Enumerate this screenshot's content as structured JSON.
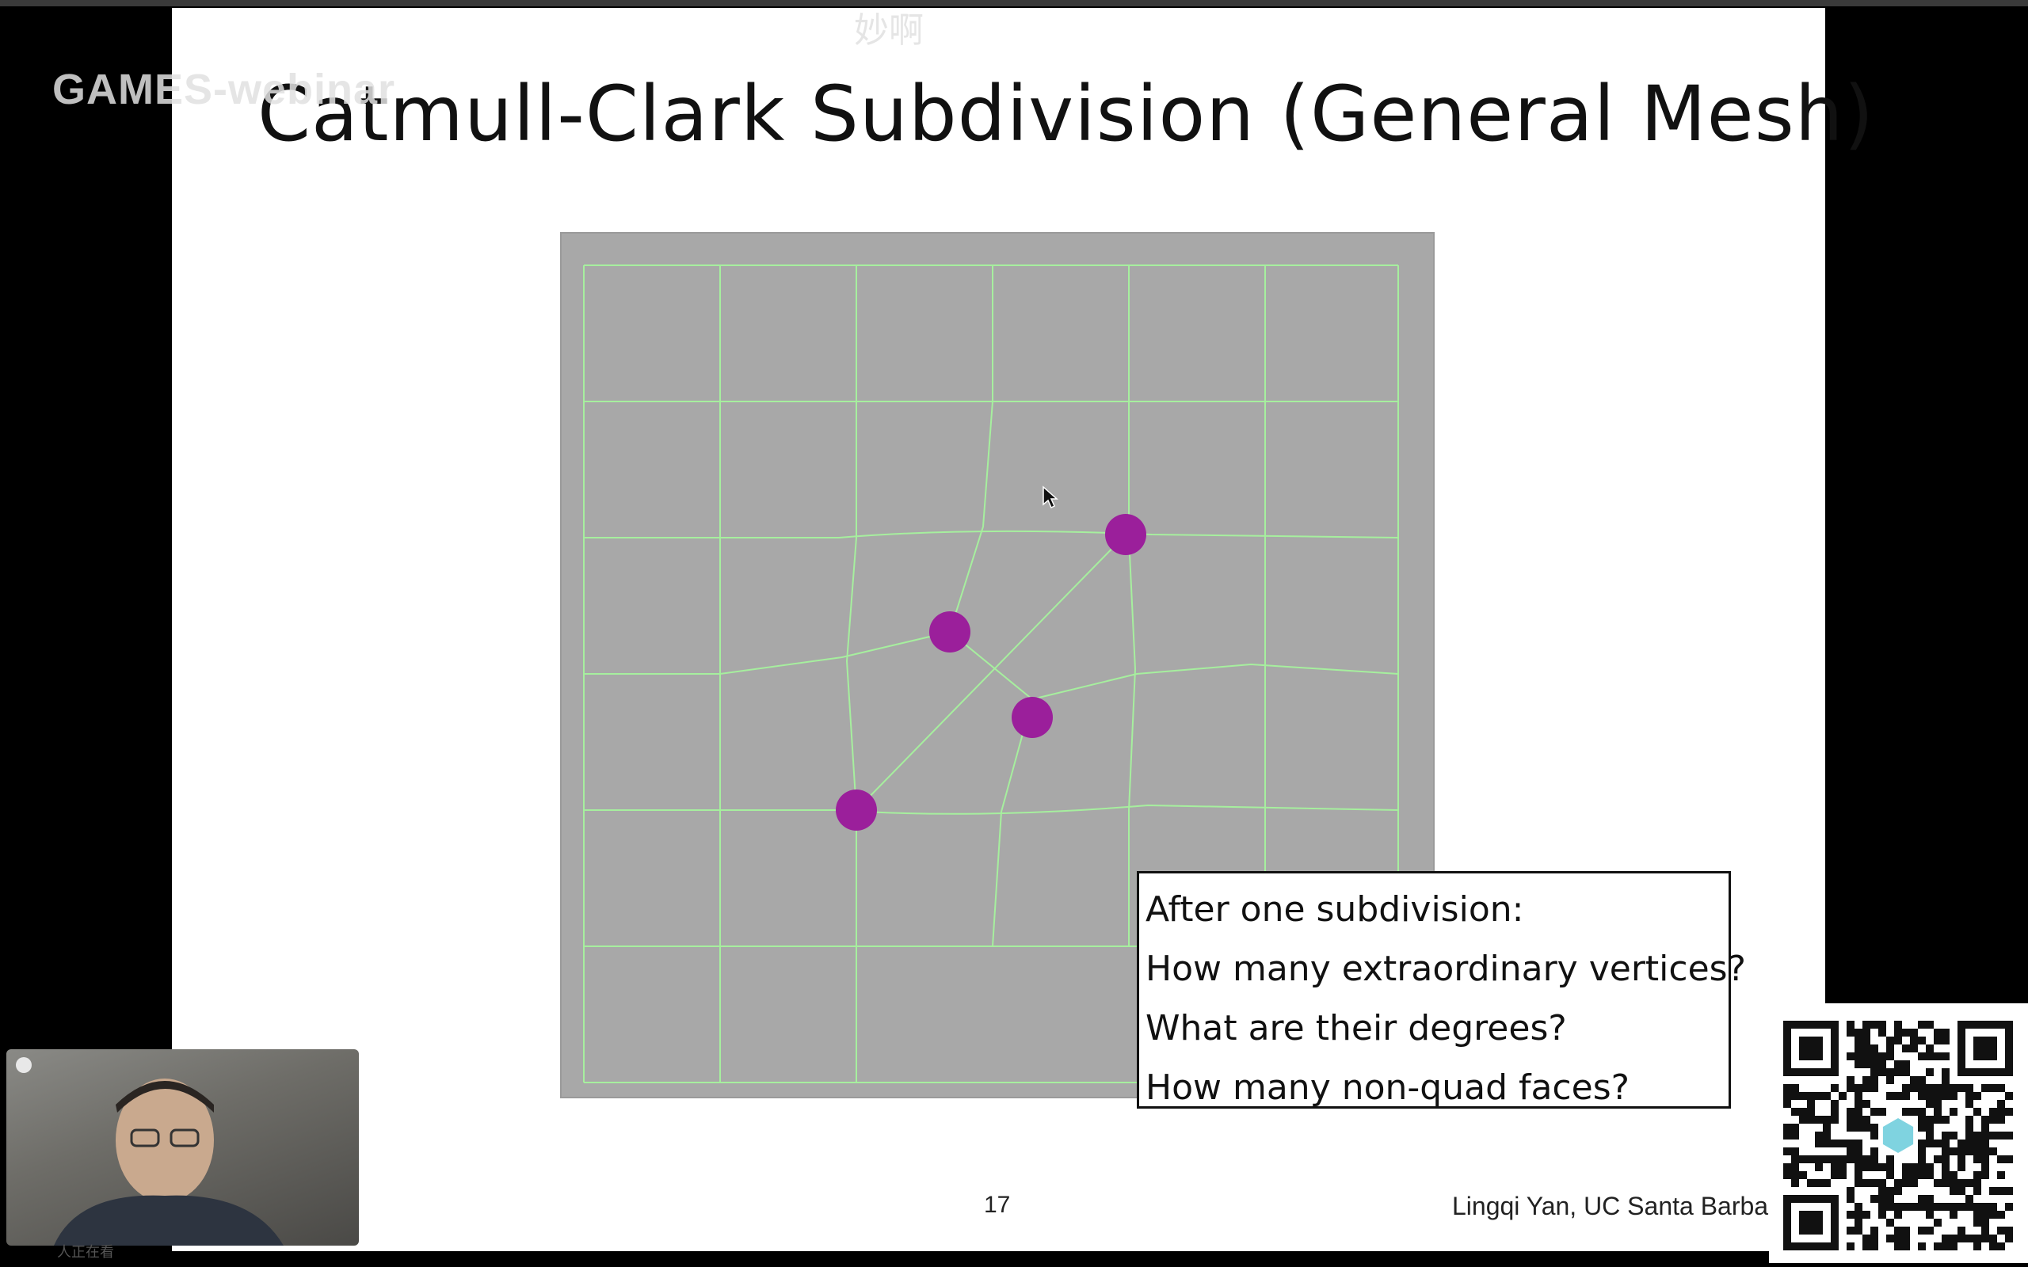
{
  "slide": {
    "title": "Catmull-Clark Subdivision (General Mesh)",
    "page_number": "17",
    "author_footer": "Lingqi Yan, UC Santa Barba",
    "questions": [
      "After one subdivision:",
      "How many extraordinary vertices?",
      "What are their degrees?",
      "How many non-quad faces?"
    ]
  },
  "overlay": {
    "watermark": "GAMES-webinar",
    "danmaku": "妙啊",
    "viewer_count": "人正在看"
  },
  "colors": {
    "mesh_background": "#a8a8a8",
    "grid_line": "#a6ef9e",
    "vertex": "#9b1f9b"
  }
}
